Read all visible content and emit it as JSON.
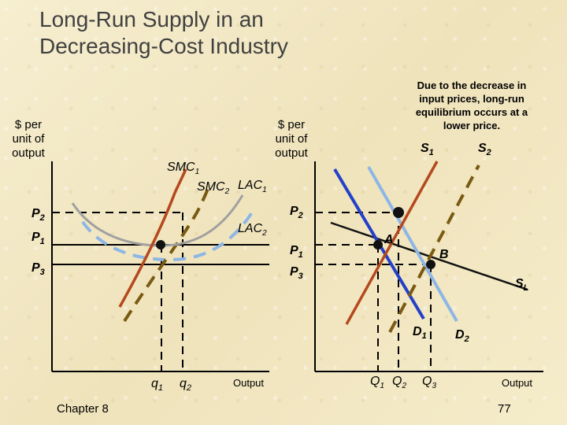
{
  "title": {
    "line1": "Long-Run Supply in an",
    "line2": "Decreasing-Cost Industry"
  },
  "left_chart": {
    "y_axis_label": [
      "$ per",
      "unit of",
      "output"
    ],
    "x_axis_label": "Output",
    "price_labels": {
      "p2": "P",
      "p2_sub": "2",
      "p1": "P",
      "p1_sub": "1",
      "p3": "P",
      "p3_sub": "3"
    },
    "curve_labels": {
      "smc1": "SMC",
      "smc1_sub": "1",
      "smc2": "SMC",
      "smc2_sub": "2",
      "lac1": "LAC",
      "lac1_sub": "1",
      "lac2": "LAC",
      "lac2_sub": "2"
    },
    "quantity_labels": {
      "q1": "q",
      "q1_sub": "1",
      "q2": "q",
      "q2_sub": "2"
    }
  },
  "right_chart": {
    "y_axis_label": [
      "$ per",
      "unit of",
      "output"
    ],
    "x_axis_label": "Output",
    "price_labels": {
      "p2": "P",
      "p2_sub": "2",
      "p1": "P",
      "p1_sub": "1",
      "p3": "P",
      "p3_sub": "3"
    },
    "curve_labels": {
      "s1": "S",
      "s1_sub": "1",
      "s2": "S",
      "s2_sub": "2",
      "sl": "S",
      "sl_sub": "L",
      "d1": "D",
      "d1_sub": "1",
      "d2": "D",
      "d2_sub": "2"
    },
    "point_labels": {
      "a": "A",
      "b": "B"
    },
    "quantity_labels": {
      "q1": "Q",
      "q1_sub": "1",
      "q2": "Q",
      "q2_sub": "2",
      "q3": "Q",
      "q3_sub": "3"
    },
    "note": "Due to the decrease in input prices, long-run equilibrium occurs at a lower price."
  },
  "footer": {
    "chapter": "Chapter 8",
    "page": "77"
  },
  "colors": {
    "background": "#f3ebc8",
    "title": "#404040",
    "smc1": "#b5481d",
    "lac1": "#a0a0a0",
    "smc2_dash": "#7a5a12",
    "lac2_dash": "#8db6e6",
    "s1": "#b5481d",
    "s2": "#7a5a12",
    "d1": "#2440c8",
    "d2": "#8db6e6"
  }
}
